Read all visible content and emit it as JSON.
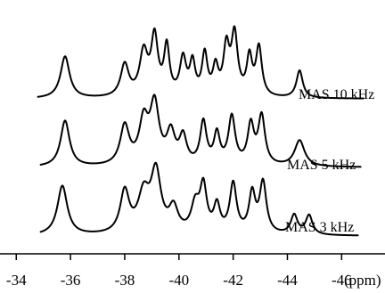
{
  "chart_data": {
    "type": "line",
    "x_unit": "(ppm)",
    "xlim": [
      -33.4,
      -47.6
    ],
    "x_ticks": [
      {
        "value": -34,
        "label": "-34"
      },
      {
        "value": -36,
        "label": "-36"
      },
      {
        "value": -38,
        "label": "-38"
      },
      {
        "value": -40,
        "label": "-40"
      },
      {
        "value": -42,
        "label": "-42"
      },
      {
        "value": -44,
        "label": "-44"
      },
      {
        "value": -46,
        "label": "-46"
      }
    ],
    "series": [
      {
        "name": "MAS 10 kHz",
        "baseline_offset": 2.0,
        "peaks": [
          {
            "x": -35.8,
            "height": 0.61,
            "width": 0.2
          },
          {
            "x": -38.0,
            "height": 0.47,
            "width": 0.18
          },
          {
            "x": -38.7,
            "height": 0.63,
            "width": 0.18
          },
          {
            "x": -39.1,
            "height": 0.84,
            "width": 0.15
          },
          {
            "x": -39.55,
            "height": 0.7,
            "width": 0.12
          },
          {
            "x": -40.15,
            "height": 0.54,
            "width": 0.14
          },
          {
            "x": -40.5,
            "height": 0.47,
            "width": 0.12
          },
          {
            "x": -40.95,
            "height": 0.6,
            "width": 0.12
          },
          {
            "x": -41.35,
            "height": 0.4,
            "width": 0.12
          },
          {
            "x": -41.75,
            "height": 0.68,
            "width": 0.13
          },
          {
            "x": -42.05,
            "height": 0.88,
            "width": 0.14
          },
          {
            "x": -42.6,
            "height": 0.55,
            "width": 0.12
          },
          {
            "x": -42.95,
            "height": 0.71,
            "width": 0.13
          },
          {
            "x": -44.45,
            "height": 0.4,
            "width": 0.14
          }
        ]
      },
      {
        "name": "MAS 5 kHz",
        "baseline_offset": 1.0,
        "peaks": [
          {
            "x": -35.8,
            "height": 0.67,
            "width": 0.2
          },
          {
            "x": -38.0,
            "height": 0.57,
            "width": 0.2
          },
          {
            "x": -38.7,
            "height": 0.61,
            "width": 0.2
          },
          {
            "x": -39.1,
            "height": 0.86,
            "width": 0.2
          },
          {
            "x": -39.7,
            "height": 0.45,
            "width": 0.18
          },
          {
            "x": -40.15,
            "height": 0.4,
            "width": 0.16
          },
          {
            "x": -40.9,
            "height": 0.62,
            "width": 0.14
          },
          {
            "x": -41.4,
            "height": 0.44,
            "width": 0.13
          },
          {
            "x": -41.95,
            "height": 0.7,
            "width": 0.15
          },
          {
            "x": -42.65,
            "height": 0.57,
            "width": 0.14
          },
          {
            "x": -43.05,
            "height": 0.71,
            "width": 0.15
          },
          {
            "x": -44.45,
            "height": 0.38,
            "width": 0.22
          }
        ]
      },
      {
        "name": "MAS 3 kHz",
        "baseline_offset": 0.0,
        "peaks": [
          {
            "x": -35.7,
            "height": 0.72,
            "width": 0.22
          },
          {
            "x": -38.0,
            "height": 0.61,
            "width": 0.2
          },
          {
            "x": -38.7,
            "height": 0.55,
            "width": 0.25
          },
          {
            "x": -39.15,
            "height": 0.87,
            "width": 0.22
          },
          {
            "x": -39.8,
            "height": 0.35,
            "width": 0.2
          },
          {
            "x": -40.6,
            "height": 0.39,
            "width": 0.18
          },
          {
            "x": -40.9,
            "height": 0.66,
            "width": 0.15
          },
          {
            "x": -41.4,
            "height": 0.39,
            "width": 0.14
          },
          {
            "x": -42.0,
            "height": 0.72,
            "width": 0.15
          },
          {
            "x": -42.7,
            "height": 0.57,
            "width": 0.14
          },
          {
            "x": -43.1,
            "height": 0.74,
            "width": 0.15
          },
          {
            "x": -44.25,
            "height": 0.28,
            "width": 0.15
          },
          {
            "x": -44.8,
            "height": 0.28,
            "width": 0.15
          }
        ]
      }
    ],
    "grid": false,
    "legend": "none"
  }
}
